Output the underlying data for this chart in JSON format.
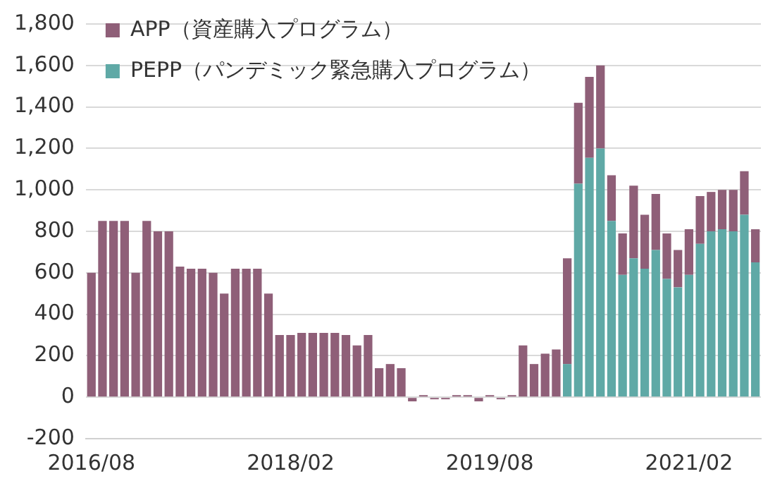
{
  "chart_data": {
    "type": "bar",
    "stacked": true,
    "categories": [
      "2016/08",
      null,
      null,
      null,
      null,
      null,
      null,
      null,
      null,
      null,
      null,
      null,
      null,
      null,
      null,
      null,
      null,
      null,
      "2018/02",
      null,
      null,
      null,
      null,
      null,
      null,
      null,
      null,
      null,
      null,
      null,
      null,
      null,
      null,
      null,
      null,
      null,
      "2019/08",
      null,
      null,
      null,
      null,
      null,
      null,
      null,
      null,
      null,
      null,
      null,
      null,
      null,
      null,
      null,
      null,
      null,
      "2021/02",
      null,
      null,
      null,
      null,
      null,
      null
    ],
    "series": [
      {
        "name": "PEPP（パンデミック緊急購入プログラム）",
        "color": "#5fa9a6",
        "values": [
          null,
          null,
          null,
          null,
          null,
          null,
          null,
          null,
          null,
          null,
          null,
          null,
          null,
          null,
          null,
          null,
          null,
          null,
          null,
          null,
          null,
          null,
          null,
          null,
          null,
          null,
          null,
          null,
          null,
          null,
          null,
          null,
          null,
          null,
          null,
          null,
          null,
          null,
          null,
          null,
          null,
          null,
          null,
          160,
          1030,
          1155,
          1200,
          850,
          590,
          670,
          620,
          710,
          570,
          530,
          590,
          740,
          800,
          810,
          800,
          880,
          650
        ]
      },
      {
        "name": "APP（資産購入プログラム）",
        "color": "#8f5f78",
        "values": [
          600,
          850,
          850,
          850,
          600,
          850,
          800,
          800,
          630,
          620,
          620,
          600,
          500,
          620,
          620,
          620,
          500,
          300,
          300,
          310,
          310,
          310,
          310,
          300,
          250,
          300,
          140,
          160,
          140,
          -20,
          10,
          -10,
          -10,
          10,
          10,
          -20,
          10,
          -10,
          10,
          250,
          160,
          210,
          230,
          510,
          390,
          390,
          400,
          220,
          200,
          350,
          260,
          270,
          220,
          180,
          220,
          230,
          190,
          190,
          200,
          210,
          160
        ]
      }
    ],
    "ylim": [
      -200,
      1800
    ],
    "yticks": [
      -200,
      0,
      200,
      400,
      600,
      800,
      {
        "value": 1000,
        "label": "1,000"
      },
      {
        "value": 1200,
        "label": "1,200"
      },
      {
        "value": 1400,
        "label": "1,400"
      },
      {
        "value": 1600,
        "label": "1,600"
      },
      {
        "value": 1800,
        "label": "1,800"
      }
    ],
    "grid": "y",
    "legend": "top left"
  }
}
